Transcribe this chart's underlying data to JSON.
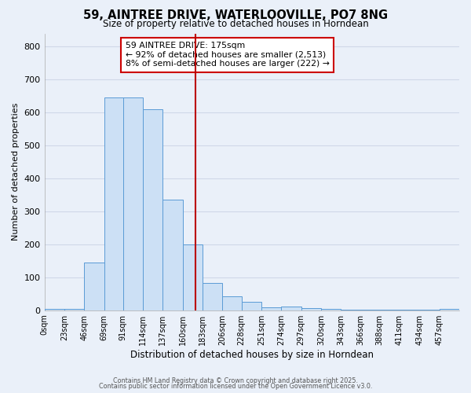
{
  "title": "59, AINTREE DRIVE, WATERLOOVILLE, PO7 8NG",
  "subtitle": "Size of property relative to detached houses in Horndean",
  "xlabel": "Distribution of detached houses by size in Horndean",
  "ylabel": "Number of detached properties",
  "bin_labels": [
    "0sqm",
    "23sqm",
    "46sqm",
    "69sqm",
    "91sqm",
    "114sqm",
    "137sqm",
    "160sqm",
    "183sqm",
    "206sqm",
    "228sqm",
    "251sqm",
    "274sqm",
    "297sqm",
    "320sqm",
    "343sqm",
    "366sqm",
    "388sqm",
    "411sqm",
    "434sqm",
    "457sqm"
  ],
  "bin_edges": [
    0,
    23,
    46,
    69,
    91,
    114,
    137,
    160,
    183,
    206,
    228,
    251,
    274,
    297,
    320,
    343,
    366,
    388,
    411,
    434,
    457
  ],
  "bar_heights": [
    5,
    5,
    145,
    645,
    645,
    610,
    335,
    200,
    83,
    42,
    25,
    10,
    12,
    7,
    3,
    2,
    2,
    2,
    1,
    1,
    3
  ],
  "bar_face_color": "#cce0f5",
  "bar_edge_color": "#5b9bd5",
  "background_color": "#eaf0f9",
  "grid_color": "#d0d8e8",
  "vline_x": 175,
  "vline_color": "#bb0000",
  "annotation_title": "59 AINTREE DRIVE: 175sqm",
  "annotation_line1": "← 92% of detached houses are smaller (2,513)",
  "annotation_line2": "8% of semi-detached houses are larger (222) →",
  "annotation_box_edge": "#cc0000",
  "ylim": [
    0,
    840
  ],
  "yticks": [
    0,
    100,
    200,
    300,
    400,
    500,
    600,
    700,
    800
  ],
  "footer1": "Contains HM Land Registry data © Crown copyright and database right 2025.",
  "footer2": "Contains public sector information licensed under the Open Government Licence v3.0."
}
